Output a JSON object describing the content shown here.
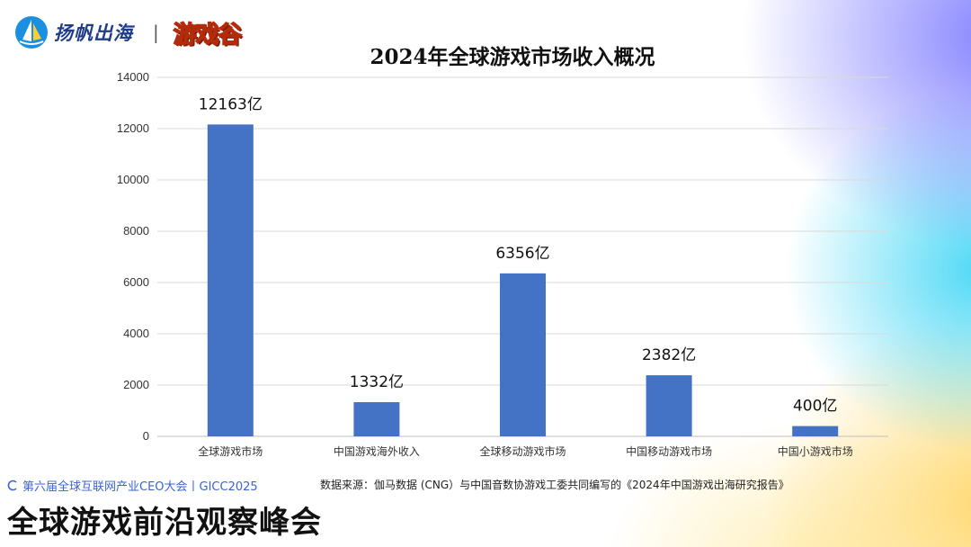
{
  "header": {
    "brand_name": "扬帆出海",
    "divider": "|",
    "game_logo": "游戏谷"
  },
  "chart_data": {
    "type": "bar",
    "title": "2024年全球游戏市场收入概况",
    "xlabel": "",
    "ylabel": "",
    "categories": [
      "全球游戏市场",
      "中国游戏海外收入",
      "全球移动游戏市场",
      "中国移动游戏市场",
      "中国小游戏市场"
    ],
    "values": [
      12163,
      1332,
      6356,
      2382,
      400
    ],
    "data_labels": [
      "12163亿",
      "1332亿",
      "6356亿",
      "2382亿",
      "400亿"
    ],
    "ylim": [
      0,
      14000
    ],
    "yticks": [
      0,
      2000,
      4000,
      6000,
      8000,
      10000,
      12000,
      14000
    ],
    "grid": true,
    "bar_color": "#4472c4"
  },
  "footer": {
    "summit": "第六届全球互联网产业CEO大会丨GICC2025",
    "source": "数据来源：伽马数据 (CNG）与中国音数协游戏工委共同编写的《2024年中国游戏出海研究报告》",
    "big_title": "全球游戏前沿观察峰会"
  },
  "icons": [
    "brand-sail-icon",
    "summit-c-icon"
  ],
  "colors": {
    "accent_blue": "#3b63d6",
    "brand_navy": "#1f3d88",
    "logo_orange": "#ffb020"
  }
}
